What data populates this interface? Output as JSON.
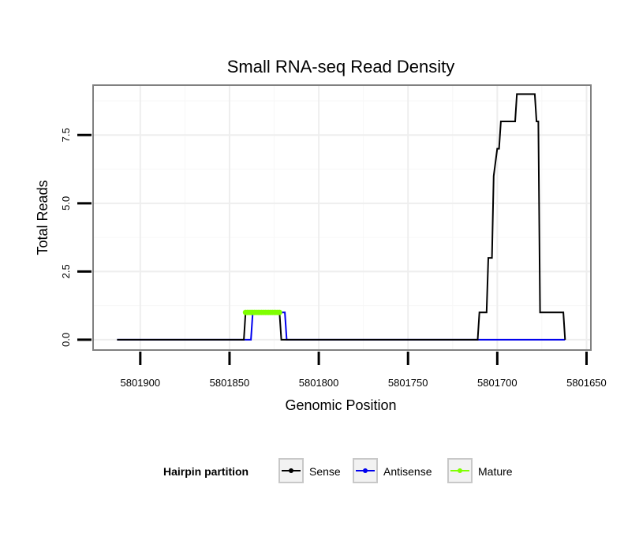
{
  "chart_data": {
    "type": "line",
    "title": "Small RNA-seq Read Density",
    "xlabel": "Genomic Position",
    "ylabel": "Total Reads",
    "x_reversed": true,
    "xlim": [
      5801926,
      5801648
    ],
    "ylim": [
      -0.35,
      9.3
    ],
    "x_ticks": [
      5801900,
      5801850,
      5801800,
      5801750,
      5801700,
      5801650
    ],
    "x_tick_labels": [
      "5801900",
      "5801850",
      "5801800",
      "5801750",
      "5801700",
      "5801650"
    ],
    "y_ticks": [
      0,
      2.5,
      5,
      7.5
    ],
    "y_tick_labels": [
      "0.0",
      "2.5",
      "5.0",
      "7.5"
    ],
    "grid": true,
    "legend": {
      "title": "Hairpin partition",
      "position": "bottom",
      "entries": [
        {
          "name": "Sense",
          "color": "#000000"
        },
        {
          "name": "Antisense",
          "color": "#0000ee"
        },
        {
          "name": "Mature",
          "color": "#7fff00"
        }
      ]
    },
    "series": [
      {
        "name": "Antisense",
        "color": "#0000ee",
        "x": [
          5801913,
          5801838,
          5801837,
          5801819,
          5801818,
          5801662
        ],
        "y": [
          0,
          0,
          1,
          1,
          0,
          0
        ]
      },
      {
        "name": "Sense",
        "color": "#000000",
        "x": [
          5801913,
          5801842,
          5801841,
          5801822,
          5801821,
          5801711,
          5801710,
          5801706,
          5801705,
          5801703,
          5801702,
          5801700,
          5801699,
          5801698,
          5801697,
          5801690,
          5801689,
          5801684,
          5801683,
          5801679,
          5801678,
          5801677,
          5801676,
          5801663,
          5801662
        ],
        "y": [
          0,
          0,
          1,
          1,
          0,
          0,
          1,
          1,
          3,
          3,
          6,
          7,
          7,
          8,
          8,
          8,
          9,
          9,
          9,
          9,
          8,
          8,
          1,
          1,
          0
        ]
      },
      {
        "name": "Mature",
        "color": "#7fff00",
        "x": [
          5801841,
          5801840,
          5801839,
          5801838,
          5801837,
          5801836,
          5801835,
          5801834,
          5801833,
          5801832,
          5801831,
          5801830,
          5801829,
          5801828,
          5801827,
          5801826,
          5801825,
          5801824,
          5801823,
          5801822
        ],
        "y": [
          1,
          1,
          1,
          1,
          1,
          1,
          1,
          1,
          1,
          1,
          1,
          1,
          1,
          1,
          1,
          1,
          1,
          1,
          1,
          1
        ]
      }
    ]
  }
}
